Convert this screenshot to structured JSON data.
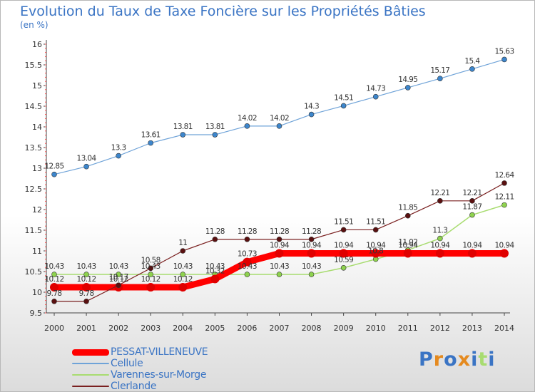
{
  "header": {
    "title": "Evolution du Taux de Taxe Foncière sur les Propriétés Bâties",
    "subtitle": "(en %)"
  },
  "logo": {
    "text": "Proxiti"
  },
  "chart_data": {
    "type": "line",
    "title": "Evolution du Taux de Taxe Foncière sur les Propriétés Bâties",
    "subtitle": "(en %)",
    "xlabel": "",
    "ylabel": "",
    "ylim": [
      9.5,
      16
    ],
    "y_ticks": [
      9.5,
      10,
      10.5,
      11,
      11.5,
      12,
      12.5,
      13,
      13.5,
      14,
      14.5,
      15,
      15.5,
      16
    ],
    "grid": false,
    "legend_position": "bottom-left",
    "categories": [
      "2000",
      "2001",
      "2002",
      "2003",
      "2004",
      "2005",
      "2006",
      "2007",
      "2008",
      "2009",
      "2010",
      "2011",
      "2012",
      "2013",
      "2014"
    ],
    "series": [
      {
        "name": "PESSAT-VILLENEUVE",
        "color": "#ff0000",
        "values": [
          10.12,
          10.12,
          10.12,
          10.12,
          10.12,
          10.32,
          10.73,
          10.94,
          10.94,
          10.94,
          10.94,
          10.94,
          10.94,
          10.94,
          10.94
        ]
      },
      {
        "name": "Cellule",
        "color": "#6fa3d8",
        "values": [
          12.85,
          13.04,
          13.3,
          13.61,
          13.81,
          13.81,
          14.02,
          14.02,
          14.3,
          14.51,
          14.73,
          14.95,
          15.17,
          15.4,
          15.63
        ]
      },
      {
        "name": "Varennes-sur-Morge",
        "color": "#a8dc70",
        "values": [
          10.43,
          10.43,
          10.43,
          10.43,
          10.43,
          10.43,
          10.43,
          10.43,
          10.43,
          10.59,
          10.8,
          11.02,
          11.3,
          11.87,
          12.11
        ]
      },
      {
        "name": "Clerlande",
        "color": "#7a2020",
        "values": [
          9.78,
          9.78,
          10.17,
          10.58,
          11,
          11.28,
          11.28,
          11.28,
          11.28,
          11.51,
          11.51,
          11.85,
          12.21,
          12.21,
          12.64
        ]
      }
    ]
  }
}
